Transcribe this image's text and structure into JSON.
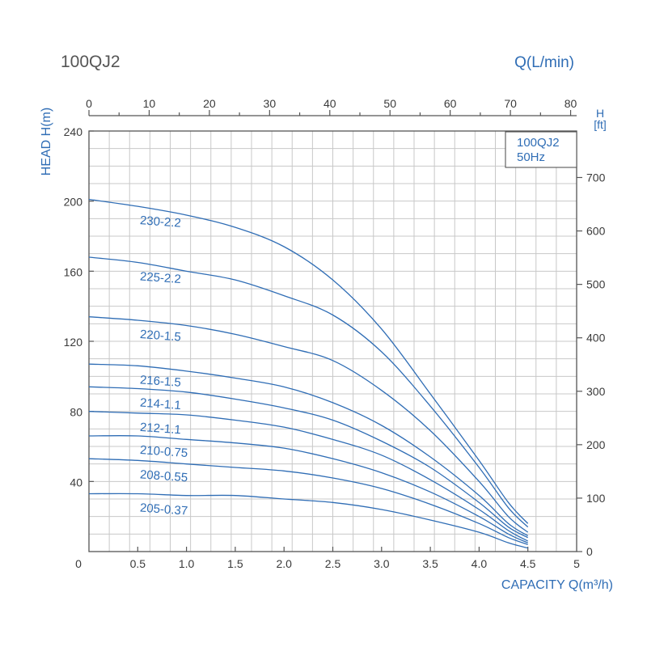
{
  "chart_data": {
    "type": "line",
    "title": "100QJ2",
    "top_axis_label": "Q(L/min)",
    "top_ticks": [
      "0",
      "10",
      "20",
      "30",
      "40",
      "50",
      "60",
      "70",
      "80"
    ],
    "top_range": [
      0,
      81
    ],
    "xlabel": "CAPACITY Q(m³/h)",
    "xlim": [
      0,
      5
    ],
    "xticks": [
      "0",
      "0.5",
      "1.0",
      "1.5",
      "2.0",
      "2.5",
      "3.0",
      "3.5",
      "4.0",
      "4.5",
      "5"
    ],
    "ylabel": "HEAD H(m)",
    "ylim": [
      0,
      240
    ],
    "yticks": [
      "40",
      "80",
      "120",
      "160",
      "200",
      "240"
    ],
    "right_axis_label": "H\n[ft]",
    "right_ticks": [
      "0",
      "100",
      "200",
      "300",
      "400",
      "500",
      "600",
      "700"
    ],
    "right_range": [
      0,
      787
    ],
    "legend_box": [
      "100QJ2",
      "50Hz"
    ],
    "grid": true,
    "series": [
      {
        "name": "230-2.2",
        "x": [
          0,
          0.5,
          1.0,
          1.5,
          2.0,
          2.5,
          3.0,
          3.5,
          4.0,
          4.3,
          4.5
        ],
        "y": [
          201,
          197,
          192,
          185,
          174,
          155,
          127,
          90,
          52,
          28,
          16
        ]
      },
      {
        "name": "225-2.2",
        "x": [
          0,
          0.5,
          1.0,
          1.5,
          2.0,
          2.5,
          3.0,
          3.5,
          4.0,
          4.3,
          4.5
        ],
        "y": [
          168,
          165,
          160,
          155,
          146,
          135,
          114,
          83,
          48,
          25,
          14
        ]
      },
      {
        "name": "220-1.5",
        "x": [
          0,
          0.5,
          1.0,
          1.5,
          2.0,
          2.5,
          3.0,
          3.5,
          4.0,
          4.3,
          4.5
        ],
        "y": [
          134,
          132,
          129,
          124,
          117,
          109,
          92,
          69,
          40,
          20,
          11
        ]
      },
      {
        "name": "216-1.5",
        "x": [
          0,
          0.5,
          1.0,
          1.5,
          2.0,
          2.5,
          3.0,
          3.5,
          4.0,
          4.3,
          4.5
        ],
        "y": [
          107,
          106,
          103,
          99,
          94,
          85,
          72,
          54,
          32,
          16,
          9
        ]
      },
      {
        "name": "214-1.1",
        "x": [
          0,
          0.5,
          1.0,
          1.5,
          2.0,
          2.5,
          3.0,
          3.5,
          4.0,
          4.3,
          4.5
        ],
        "y": [
          94,
          93,
          91,
          87,
          82,
          75,
          63,
          48,
          28,
          14,
          8
        ]
      },
      {
        "name": "212-1.1",
        "x": [
          0,
          0.5,
          1.0,
          1.5,
          2.0,
          2.5,
          3.0,
          3.5,
          4.0,
          4.3,
          4.5
        ],
        "y": [
          80,
          79,
          78,
          75,
          71,
          64,
          55,
          41,
          24,
          12,
          6
        ]
      },
      {
        "name": "210-0.75",
        "x": [
          0,
          0.5,
          1.0,
          1.5,
          2.0,
          2.5,
          3.0,
          3.5,
          4.0,
          4.3,
          4.5
        ],
        "y": [
          66,
          66,
          64,
          62,
          59,
          53,
          45,
          34,
          20,
          10,
          5
        ]
      },
      {
        "name": "208-0.55",
        "x": [
          0,
          0.5,
          1.0,
          1.5,
          2.0,
          2.5,
          3.0,
          3.5,
          4.0,
          4.3,
          4.5
        ],
        "y": [
          53,
          52,
          50,
          48,
          46,
          42,
          36,
          27,
          16,
          8,
          4
        ]
      },
      {
        "name": "205-0.37",
        "x": [
          0,
          0.5,
          1.0,
          1.5,
          2.0,
          2.5,
          3.0,
          3.5,
          4.0,
          4.3,
          4.5
        ],
        "y": [
          33,
          33,
          32,
          32,
          30,
          28,
          24,
          18,
          11,
          5,
          2
        ]
      }
    ]
  }
}
